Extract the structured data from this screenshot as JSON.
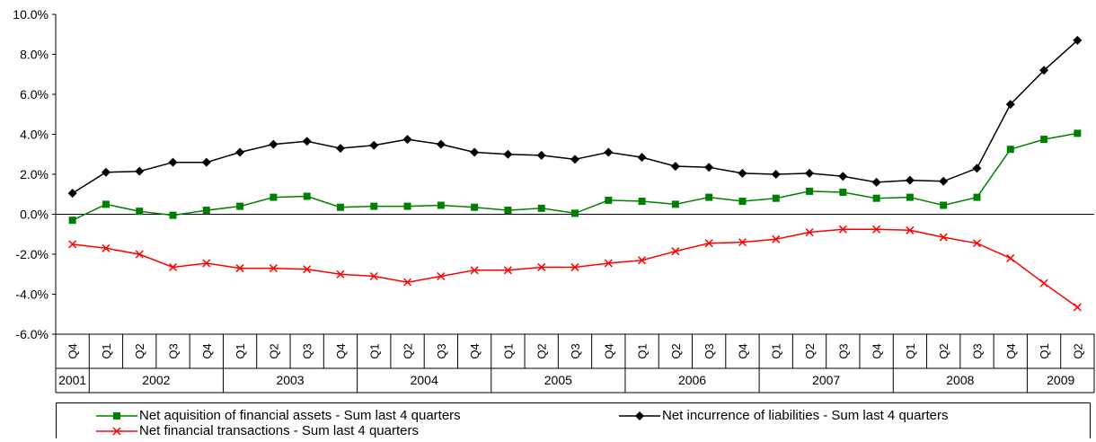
{
  "chart_data": {
    "type": "line",
    "title": "",
    "xlabel": "",
    "ylabel": "",
    "ylim": [
      -0.06,
      0.1
    ],
    "y_ticks": [
      "10.0%",
      "8.0%",
      "6.0%",
      "4.0%",
      "2.0%",
      "0.0%",
      "-2.0%",
      "-4.0%",
      "-6.0%"
    ],
    "quarters": [
      "Q4",
      "Q1",
      "Q2",
      "Q3",
      "Q4",
      "Q1",
      "Q2",
      "Q3",
      "Q4",
      "Q1",
      "Q2",
      "Q3",
      "Q4",
      "Q1",
      "Q2",
      "Q3",
      "Q4",
      "Q1",
      "Q2",
      "Q3",
      "Q4",
      "Q1",
      "Q2",
      "Q3",
      "Q4",
      "Q1",
      "Q2",
      "Q3",
      "Q4",
      "Q1",
      "Q2"
    ],
    "years": [
      {
        "label": "2001",
        "span": 1
      },
      {
        "label": "2002",
        "span": 4
      },
      {
        "label": "2003",
        "span": 4
      },
      {
        "label": "2004",
        "span": 4
      },
      {
        "label": "2005",
        "span": 4
      },
      {
        "label": "2006",
        "span": 4
      },
      {
        "label": "2007",
        "span": 4
      },
      {
        "label": "2008",
        "span": 4
      },
      {
        "label": "2009",
        "span": 2
      }
    ],
    "legend_position": "bottom",
    "grid": false,
    "series": [
      {
        "name": "Net aquisition of financial assets - Sum last 4 quarters",
        "color": "#008000",
        "marker": "square",
        "values": [
          -0.3,
          0.5,
          0.15,
          -0.05,
          0.2,
          0.4,
          0.85,
          0.9,
          0.35,
          0.4,
          0.4,
          0.45,
          0.35,
          0.2,
          0.3,
          0.05,
          0.7,
          0.65,
          0.5,
          0.85,
          0.65,
          0.8,
          1.15,
          1.1,
          0.8,
          0.85,
          0.45,
          0.85,
          3.25,
          3.75,
          4.05
        ]
      },
      {
        "name": "Net incurrence of liabilities - Sum last 4 quarters",
        "color": "#000000",
        "marker": "diamond",
        "values": [
          1.05,
          2.1,
          2.15,
          2.6,
          2.6,
          3.1,
          3.5,
          3.65,
          3.3,
          3.45,
          3.75,
          3.5,
          3.1,
          3.0,
          2.95,
          2.75,
          3.1,
          2.85,
          2.4,
          2.35,
          2.05,
          2.0,
          2.05,
          1.9,
          1.6,
          1.7,
          1.65,
          2.3,
          5.5,
          7.2,
          8.7
        ]
      },
      {
        "name": "Net financial transactions - Sum last 4 quarters",
        "color": "#ff0000",
        "marker": "x",
        "values": [
          -1.5,
          -1.7,
          -2.0,
          -2.65,
          -2.45,
          -2.7,
          -2.7,
          -2.75,
          -3.0,
          -3.1,
          -3.4,
          -3.1,
          -2.8,
          -2.8,
          -2.65,
          -2.65,
          -2.45,
          -2.3,
          -1.85,
          -1.45,
          -1.4,
          -1.25,
          -0.9,
          -0.75,
          -0.75,
          -0.8,
          -1.15,
          -1.45,
          -2.2,
          -3.45,
          -4.65
        ]
      }
    ]
  }
}
